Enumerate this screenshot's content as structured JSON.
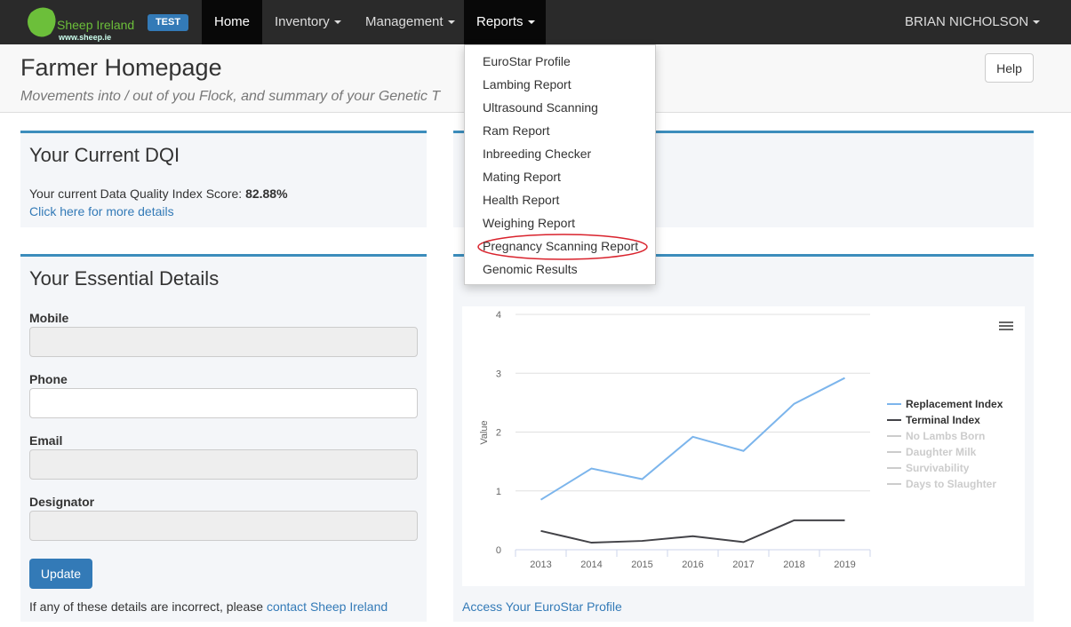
{
  "navbar": {
    "brand": "Sheep Ireland",
    "brand_url": "www.sheep.ie",
    "badge": "TEST",
    "items": [
      "Home",
      "Inventory",
      "Management",
      "Reports"
    ],
    "user": "BRIAN NICHOLSON"
  },
  "reports_menu": [
    "EuroStar Profile",
    "Lambing Report",
    "Ultrasound Scanning",
    "Ram Report",
    "Inbreeding Checker",
    "Mating Report",
    "Health Report",
    "Weighing Report",
    "Pregnancy Scanning Report",
    "Genomic Results"
  ],
  "header": {
    "title": "Farmer Homepage",
    "subtitle": "Movements into / out of you Flock, and summary of your Genetic T",
    "help": "Help"
  },
  "dqi": {
    "title": "Your Current DQI",
    "text": "Your current Data Quality Index Score:",
    "score": "82.88%",
    "link": "Click here for more details"
  },
  "details": {
    "title": "Your Essential Details",
    "fields": [
      "Mobile",
      "Phone",
      "Email",
      "Designator"
    ],
    "button": "Update",
    "note": "If any of these details are incorrect, please",
    "link": "contact Sheep Ireland"
  },
  "eurostar_link": "Access Your EuroStar Profile",
  "chart_data": {
    "type": "line",
    "y_label": "Value",
    "categories": [
      "2013",
      "2014",
      "2015",
      "2016",
      "2017",
      "2018",
      "2019"
    ],
    "ylim": [
      0,
      4
    ],
    "yticks": [
      0,
      1,
      2,
      3,
      4
    ],
    "grid": true,
    "series": [
      {
        "name": "Replacement Index",
        "color": "#7cb5ec",
        "values": [
          0.85,
          1.38,
          1.2,
          1.92,
          1.68,
          2.48,
          2.92
        ]
      },
      {
        "name": "Terminal Index",
        "color": "#434348",
        "values": [
          0.32,
          0.12,
          0.15,
          0.23,
          0.13,
          0.5,
          0.5
        ]
      },
      {
        "name": "No Lambs Born",
        "color": "#cccccc",
        "visible": false
      },
      {
        "name": "Daughter Milk",
        "color": "#cccccc",
        "visible": false
      },
      {
        "name": "Survivability",
        "color": "#cccccc",
        "visible": false
      },
      {
        "name": "Days to Slaughter",
        "color": "#cccccc",
        "visible": false
      }
    ]
  }
}
